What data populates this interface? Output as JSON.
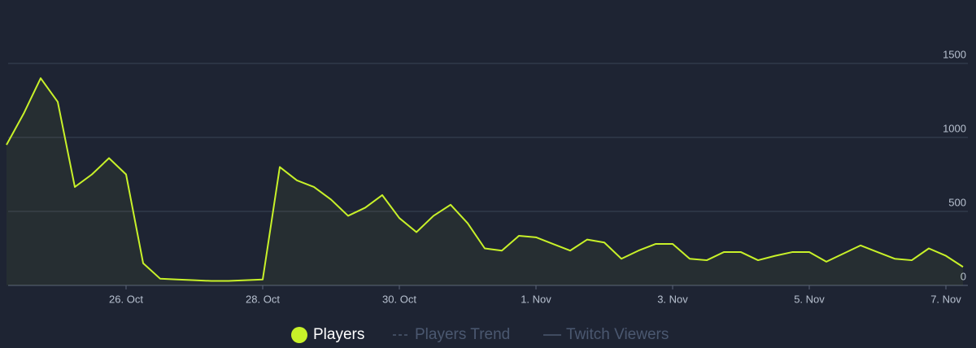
{
  "chart_data": {
    "type": "line",
    "categories": [
      null,
      null,
      null,
      null,
      null,
      null,
      null,
      "26. Oct",
      null,
      null,
      null,
      null,
      null,
      null,
      null,
      "28. Oct",
      null,
      null,
      null,
      null,
      null,
      null,
      null,
      "30. Oct",
      null,
      null,
      null,
      null,
      null,
      null,
      null,
      "1. Nov",
      null,
      null,
      null,
      null,
      null,
      null,
      null,
      "3. Nov",
      null,
      null,
      null,
      null,
      null,
      null,
      null,
      "5. Nov",
      null,
      null,
      null,
      null,
      null,
      null,
      null,
      "7. Nov",
      null
    ],
    "series": [
      {
        "name": "Players",
        "color": "#c8f129",
        "values": [
          950,
          1160,
          1400,
          1240,
          665,
          750,
          860,
          750,
          150,
          45,
          40,
          35,
          30,
          30,
          35,
          40,
          800,
          710,
          665,
          580,
          470,
          525,
          610,
          455,
          360,
          470,
          545,
          420,
          250,
          235,
          335,
          325,
          280,
          235,
          310,
          290,
          180,
          235,
          280,
          280,
          180,
          170,
          225,
          225,
          170,
          200,
          225,
          225,
          160,
          215,
          270,
          225,
          180,
          170,
          250,
          200,
          125
        ]
      }
    ],
    "legend_inactive": [
      "Players Trend",
      "Twitch Viewers"
    ],
    "ylim": [
      0,
      1750
    ],
    "yticks": [
      0,
      500,
      1000,
      1500
    ],
    "grid": true
  }
}
